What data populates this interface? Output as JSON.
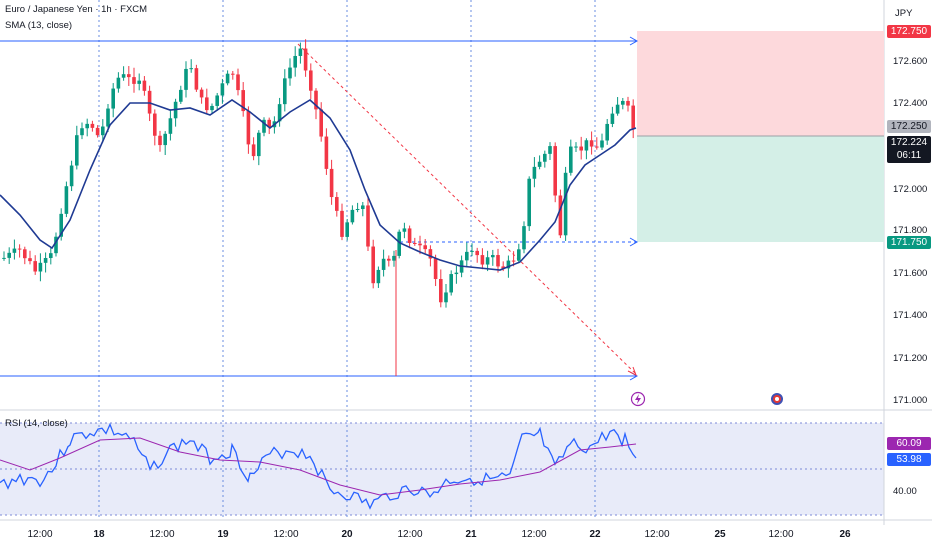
{
  "legend": {
    "symbol": "Euro / Japanese Yen · 1h · FXCM",
    "indicator": "SMA (13, close)",
    "rsi": "RSI (14, close)"
  },
  "currency": "JPY",
  "price_axis": [
    "172.600",
    "172.400",
    "172.000",
    "171.800",
    "171.600",
    "171.400",
    "171.200",
    "171.000"
  ],
  "rsi_axis": [
    "40.00"
  ],
  "tags": {
    "target": "172.750",
    "entry": "172.250",
    "last": "172.224",
    "countdown": "06:11",
    "stop": "171.750",
    "rsi": "60.09",
    "rsi_ma": "53.98"
  },
  "time_axis": [
    {
      "label": "12:00",
      "bold": false
    },
    {
      "label": "18",
      "bold": true
    },
    {
      "label": "12:00",
      "bold": false
    },
    {
      "label": "19",
      "bold": true
    },
    {
      "label": "12:00",
      "bold": false
    },
    {
      "label": "20",
      "bold": true
    },
    {
      "label": "12:00",
      "bold": false
    },
    {
      "label": "21",
      "bold": true
    },
    {
      "label": "12:00",
      "bold": false
    },
    {
      "label": "22",
      "bold": true
    },
    {
      "label": "12:00",
      "bold": false
    },
    {
      "label": "25",
      "bold": true
    },
    {
      "label": "12:00",
      "bold": false
    },
    {
      "label": "26",
      "bold": true
    }
  ],
  "colors": {
    "up": "#089981",
    "down": "#f23645",
    "sma": "#2040a0",
    "rsi": "#2962ff",
    "rsi_ma": "#9c27b0",
    "target_zone": "#fdd9dc",
    "stop_zone": "#d4efe7"
  },
  "icons": [
    "lightning-event-icon",
    "flag-event-icon"
  ]
}
